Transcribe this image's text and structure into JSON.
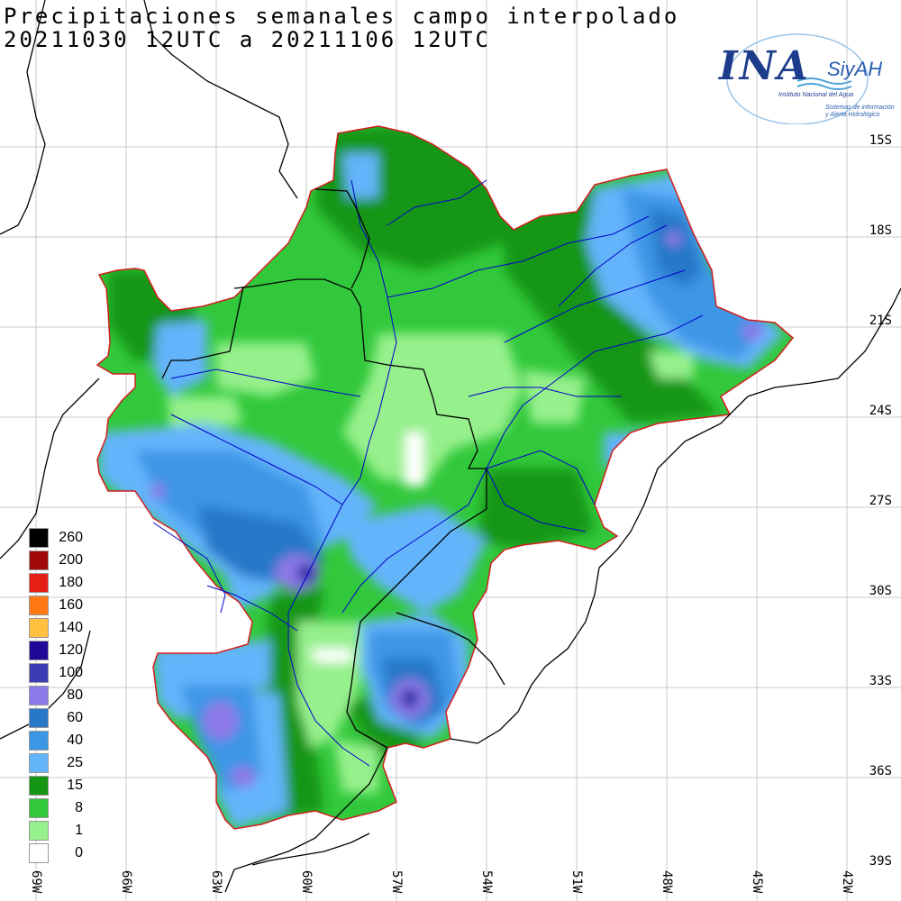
{
  "title": {
    "line1": "Precipitaciones semanales campo interpolado",
    "line2": "20211030 12UTC a 20211106 12UTC"
  },
  "logo": {
    "main": "INA",
    "name": "SiyAH",
    "institution": "Instituto Nacional del Agua",
    "system_line1": "Sistemas de información",
    "system_line2": "y Alerta Hidrológico"
  },
  "colors": {
    "c0": "#ffffff",
    "c1": "#96f08c",
    "c8": "#32c83c",
    "c15": "#149614",
    "c25": "#64b4fa",
    "c40": "#3c96e6",
    "c60": "#2878c8",
    "c80": "#8c78e6",
    "c100": "#3c3cb4",
    "c120": "#1e0a96",
    "c140": "#ffc040",
    "c160": "#ff7814",
    "c180": "#e61e14",
    "c200": "#a00a0a",
    "c260": "#000000",
    "border": "#d21e1e",
    "rivers": "#0000cc",
    "land_lines": "#000000",
    "grid": "#bfbfbf"
  },
  "legend": [
    {
      "label": "260",
      "color": "#000000"
    },
    {
      "label": "200",
      "color": "#a00a0a"
    },
    {
      "label": "180",
      "color": "#e61e14"
    },
    {
      "label": "160",
      "color": "#ff7814"
    },
    {
      "label": "140",
      "color": "#ffc040"
    },
    {
      "label": "120",
      "color": "#1e0a96"
    },
    {
      "label": "100",
      "color": "#3c3cb4"
    },
    {
      "label": "80",
      "color": "#8c78e6"
    },
    {
      "label": "60",
      "color": "#2878c8"
    },
    {
      "label": "40",
      "color": "#3c96e6"
    },
    {
      "label": "25",
      "color": "#64b4fa"
    },
    {
      "label": "15",
      "color": "#149614"
    },
    {
      "label": "8",
      "color": "#32c83c"
    },
    {
      "label": "1",
      "color": "#96f08c"
    },
    {
      "label": "0",
      "color": "#ffffff"
    }
  ],
  "lat_labels": [
    "15S",
    "18S",
    "21S",
    "24S",
    "27S",
    "30S",
    "33S",
    "36S",
    "39S"
  ],
  "lon_labels": [
    "69W",
    "66W",
    "63W",
    "60W",
    "57W",
    "54W",
    "51W",
    "48W",
    "45W",
    "42W"
  ]
}
